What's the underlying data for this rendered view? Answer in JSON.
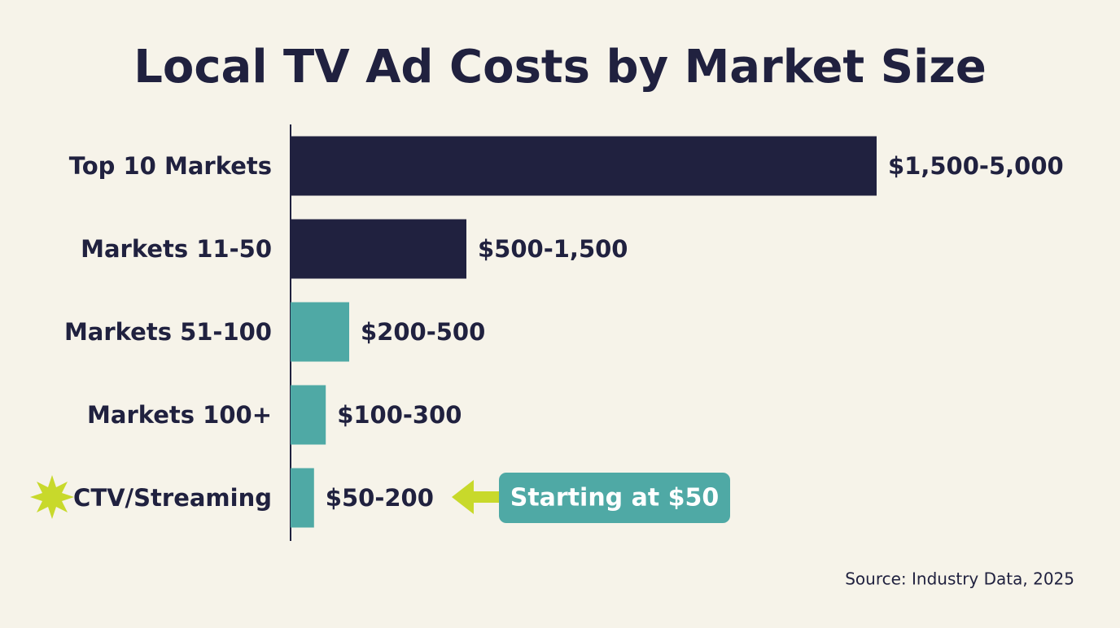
{
  "chart_data": {
    "type": "hbar",
    "title": "Local TV Ad Costs by Market Size",
    "categories": [
      "Top 10 Markets",
      "Markets 11-50",
      "Markets 51-100",
      "Markets 100+",
      "CTV/Streaming"
    ],
    "values": [
      5000,
      1500,
      500,
      300,
      200
    ],
    "value_labels": [
      "$1,500-5,000",
      "$500-1,500",
      "$200-500",
      "$100-300",
      "$50-200"
    ],
    "colors": [
      "#20213f",
      "#20213f",
      "#4fa9a5",
      "#4fa9a5",
      "#4fa9a5"
    ],
    "annotation": "Starting at $50",
    "source": "Source: Industry Data, 2025"
  }
}
